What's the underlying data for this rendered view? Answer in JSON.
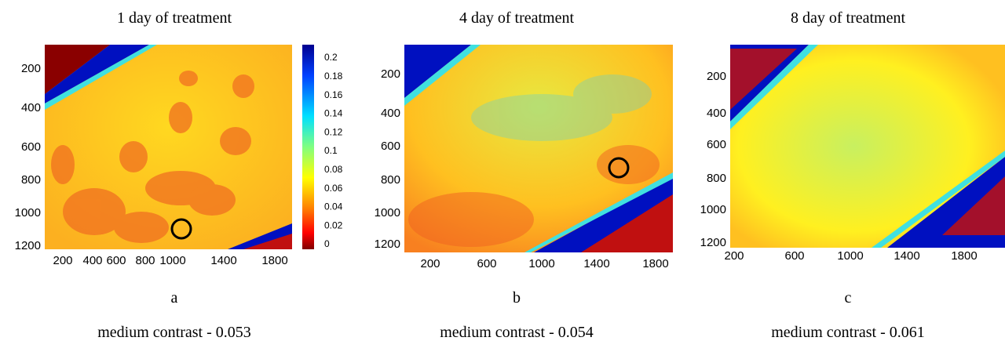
{
  "panels": [
    {
      "title": "1 day of treatment",
      "yticks": [
        200,
        400,
        600,
        800,
        1000,
        1200
      ],
      "xticks": [
        200,
        400,
        600,
        800,
        1000,
        1400,
        1800
      ],
      "label": "a",
      "caption": "medium contrast - 0.053"
    },
    {
      "title": "4 day of treatment",
      "yticks": [
        200,
        400,
        600,
        800,
        1000,
        1200
      ],
      "xticks": [
        200,
        600,
        1000,
        1400,
        1800
      ],
      "label": "b",
      "caption": "medium contrast - 0.054"
    },
    {
      "title": "8 day of treatment",
      "yticks": [
        200,
        400,
        600,
        800,
        1000,
        1200
      ],
      "xticks": [
        200,
        600,
        1000,
        1400,
        1800
      ],
      "label": "c",
      "caption": "medium contrast - 0.061"
    }
  ],
  "colorbar": {
    "ticks": [
      0.2,
      0.18,
      0.16,
      0.14,
      0.12,
      0.1,
      0.08,
      0.06,
      0.04,
      0.02,
      0
    ]
  }
}
